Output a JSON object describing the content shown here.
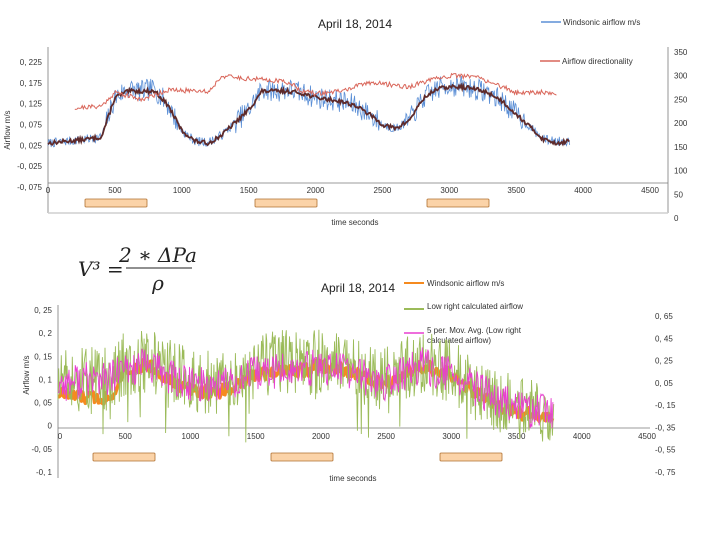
{
  "colors": {
    "windsonic": "#5b8fd6",
    "directionality": "#d9665a",
    "moving_average": "#5e2a2a",
    "low_right": "#9bbb59",
    "five_per_avg": "#e83ed0",
    "orange": "#f58a1f",
    "marker_fill": "#fbd3a8",
    "marker_border": "#b07030"
  },
  "formula": {
    "lhs": "V³ =",
    "numerator": "2 ∗ ΔPa",
    "denominator": "ρ"
  },
  "chart_data": [
    {
      "type": "line",
      "title": "April 18, 2014",
      "xlabel": "time seconds",
      "ylabel": "Airflow m/s",
      "xlim": [
        0,
        4500
      ],
      "ylim_left": [
        -0.075,
        0.225
      ],
      "ylim_right": [
        0,
        350
      ],
      "x_ticks": [
        "0",
        "500",
        "1000",
        "1500",
        "2000",
        "2500",
        "3000",
        "3500",
        "4000",
        "4500"
      ],
      "y_ticks_left": [
        "0, 225",
        "0, 175",
        "0, 125",
        "0, 075",
        "0, 025",
        "-0, 025",
        "-0, 075"
      ],
      "y_ticks_right": [
        "350",
        "300",
        "250",
        "200",
        "150",
        "100",
        "50",
        "0"
      ],
      "legend": [
        "Windsonic airflow m/s",
        "Airflow directionality"
      ],
      "series": [
        {
          "name": "Windsonic airflow m/s",
          "axis": "left",
          "x": [
            0,
            150,
            300,
            400,
            500,
            600,
            700,
            800,
            900,
            1000,
            1100,
            1200,
            1300,
            1400,
            1500,
            1600,
            1700,
            1800,
            1900,
            2000,
            2100,
            2200,
            2300,
            2400,
            2500,
            2600,
            2700,
            2800,
            2900,
            3000,
            3100,
            3200,
            3300,
            3400,
            3500,
            3600,
            3700,
            3800,
            3900
          ],
          "y": [
            0.03,
            0.035,
            0.04,
            0.045,
            0.14,
            0.16,
            0.155,
            0.16,
            0.12,
            0.06,
            0.035,
            0.032,
            0.05,
            0.08,
            0.11,
            0.16,
            0.155,
            0.16,
            0.15,
            0.14,
            0.135,
            0.13,
            0.12,
            0.1,
            0.075,
            0.065,
            0.085,
            0.135,
            0.16,
            0.17,
            0.165,
            0.16,
            0.15,
            0.13,
            0.1,
            0.07,
            0.04,
            0.035,
            0.035
          ]
        },
        {
          "name": "Airflow directionality",
          "axis": "right",
          "x": [
            200,
            400,
            500,
            700,
            900,
            1000,
            1100,
            1200,
            1300,
            1400,
            1500,
            1600,
            1700,
            1800,
            1900,
            2000,
            2200,
            2400,
            2600,
            2700,
            2800,
            3000,
            3200,
            3400,
            3500,
            3700,
            3800
          ],
          "y": [
            232,
            236,
            265,
            250,
            270,
            268,
            270,
            266,
            300,
            296,
            294,
            292,
            290,
            286,
            268,
            262,
            268,
            286,
            280,
            276,
            286,
            300,
            298,
            276,
            264,
            266,
            262
          ]
        },
        {
          "name": "",
          "axis": "left",
          "x": [
            0,
            150,
            300,
            400,
            500,
            600,
            700,
            800,
            900,
            1000,
            1100,
            1200,
            1300,
            1400,
            1500,
            1600,
            1700,
            1800,
            1900,
            2000,
            2100,
            2200,
            2300,
            2400,
            2500,
            2600,
            2700,
            2800,
            2900,
            3000,
            3100,
            3200,
            3300,
            3400,
            3500,
            3600,
            3700,
            3800,
            3900
          ],
          "y": [
            0.03,
            0.035,
            0.04,
            0.045,
            0.14,
            0.155,
            0.155,
            0.155,
            0.12,
            0.06,
            0.035,
            0.03,
            0.05,
            0.08,
            0.11,
            0.155,
            0.155,
            0.155,
            0.15,
            0.14,
            0.135,
            0.13,
            0.12,
            0.1,
            0.075,
            0.065,
            0.085,
            0.135,
            0.16,
            0.165,
            0.165,
            0.16,
            0.15,
            0.13,
            0.1,
            0.07,
            0.04,
            0.03,
            0.035
          ]
        }
      ]
    },
    {
      "type": "line",
      "title": "April  18, 2014",
      "xlabel": "time seconds",
      "ylabel": "Airflow m/s",
      "xlim": [
        0,
        4500
      ],
      "ylim_left": [
        -0.1,
        0.25
      ],
      "ylim_right": [
        -0.75,
        0.65
      ],
      "x_ticks": [
        "0",
        "500",
        "1000",
        "1500",
        "2000",
        "2500",
        "3000",
        "3500",
        "4000",
        "4500"
      ],
      "y_ticks_left": [
        "0, 25",
        "0, 2",
        "0, 15",
        "0, 1",
        "0, 05",
        "0",
        "-0, 05",
        "-0, 1"
      ],
      "y_ticks_right": [
        "0, 65",
        "0, 45",
        "0, 25",
        "0, 05",
        "-0, 15",
        "-0, 35",
        "-0, 55",
        "-0, 75"
      ],
      "legend": [
        "Windsonic airflow m/s",
        "Low right calculated airflow",
        "5 per. Mov. Avg. (Low right calculated airflow)"
      ],
      "series": [
        {
          "name": "Windsonic airflow m/s",
          "axis": "left",
          "x": [
            0,
            200,
            400,
            500,
            700,
            900,
            1000,
            1200,
            1400,
            1500,
            1700,
            1900,
            2000,
            2200,
            2400,
            2500,
            2700,
            2800,
            3000,
            3200,
            3400,
            3500,
            3700,
            3800
          ],
          "y": [
            0.07,
            0.06,
            0.06,
            0.12,
            0.13,
            0.09,
            0.08,
            0.07,
            0.09,
            0.11,
            0.12,
            0.12,
            0.13,
            0.12,
            0.1,
            0.09,
            0.12,
            0.13,
            0.11,
            0.07,
            0.04,
            0.03,
            0.02,
            0.01
          ]
        },
        {
          "name": "Low right calculated airflow",
          "axis": "left",
          "x": [
            0,
            200,
            400,
            500,
            700,
            900,
            1000,
            1200,
            1400,
            1500,
            1700,
            1900,
            2000,
            2200,
            2400,
            2500,
            2700,
            2800,
            3000,
            3200,
            3400,
            3500,
            3700,
            3800
          ],
          "y": [
            0.09,
            0.1,
            0.1,
            0.13,
            0.14,
            0.11,
            0.1,
            0.09,
            0.1,
            0.12,
            0.14,
            0.13,
            0.14,
            0.13,
            0.11,
            0.1,
            0.13,
            0.14,
            0.12,
            0.08,
            0.05,
            0.04,
            0.03,
            0.02
          ]
        },
        {
          "name": "5 per. Mov. Avg. (Low right calculated airflow)",
          "axis": "left",
          "x": [
            0,
            200,
            400,
            500,
            700,
            900,
            1000,
            1200,
            1400,
            1500,
            1700,
            1900,
            2000,
            2200,
            2400,
            2500,
            2700,
            2800,
            3000,
            3200,
            3400,
            3500,
            3700,
            3800
          ],
          "y": [
            0.09,
            0.1,
            0.1,
            0.12,
            0.13,
            0.1,
            0.09,
            0.09,
            0.1,
            0.11,
            0.12,
            0.12,
            0.13,
            0.12,
            0.1,
            0.09,
            0.12,
            0.13,
            0.11,
            0.08,
            0.05,
            0.04,
            0.03,
            0.02
          ]
        }
      ]
    }
  ]
}
